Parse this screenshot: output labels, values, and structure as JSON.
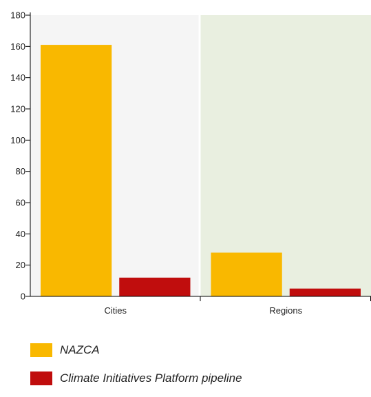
{
  "chart_data": {
    "type": "bar",
    "categories": [
      "Cities",
      "Regions"
    ],
    "series": [
      {
        "name": "NAZCA",
        "color": "#f9b800",
        "values": [
          161,
          28
        ]
      },
      {
        "name": "Climate Initiatives Platform pipeline",
        "color": "#c00d0d",
        "values": [
          12,
          5
        ]
      }
    ],
    "ylim": [
      0,
      180
    ],
    "yticks": [
      "0",
      "20",
      "40",
      "60",
      "80",
      "100",
      "120",
      "140",
      "160",
      "180"
    ],
    "band_colors": [
      "#f5f5f5",
      "#e9efe0"
    ],
    "grid": false,
    "legend_position": "bottom-left"
  }
}
